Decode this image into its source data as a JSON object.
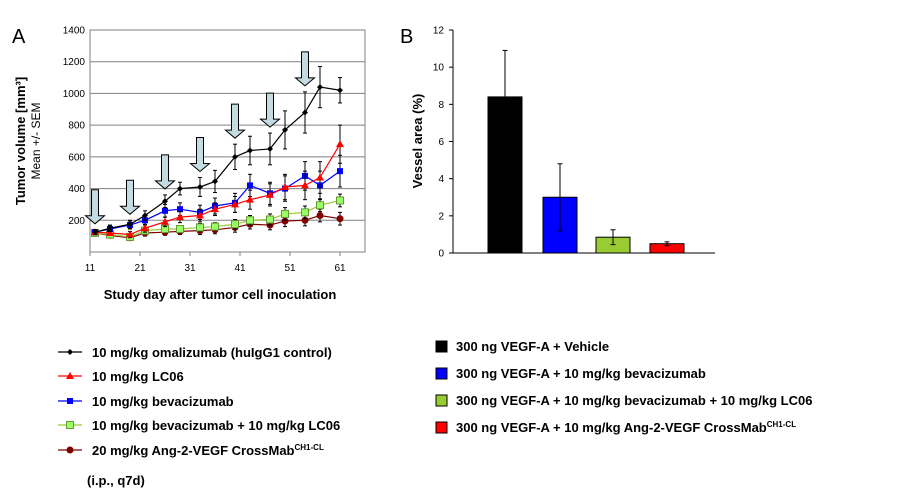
{
  "chart_data": [
    {
      "panel": "A",
      "type": "line",
      "xlabel": "Study day after tumor cell inoculation",
      "ylabel": "Tumor volume [mm³]",
      "ylabel_sub": "Mean +/- SEM",
      "xlim": [
        11,
        66
      ],
      "ylim": [
        0,
        1400
      ],
      "xticks": [
        "11",
        "21",
        "31",
        "41",
        "51",
        "61"
      ],
      "yticks": [
        "200",
        "400",
        "600",
        "800",
        "1000",
        "1200",
        "1400"
      ],
      "grid": true,
      "treatment_days": [
        12,
        19,
        26,
        33,
        40,
        47,
        54
      ],
      "series": [
        {
          "name": "10 mg/kg omalizumab (huIgG1 control)",
          "color": "#000000",
          "marker": "diamond",
          "x": [
            12,
            15,
            19,
            22,
            26,
            29,
            33,
            36,
            40,
            43,
            47,
            50,
            54,
            57,
            61
          ],
          "y": [
            125,
            150,
            175,
            230,
            320,
            400,
            410,
            445,
            600,
            640,
            650,
            770,
            880,
            1040,
            1020
          ],
          "err": [
            15,
            20,
            25,
            30,
            40,
            40,
            60,
            70,
            80,
            90,
            100,
            120,
            130,
            130,
            80
          ]
        },
        {
          "name": "10 mg/kg LC06",
          "color": "#ff0000",
          "marker": "triangle",
          "x": [
            12,
            15,
            19,
            22,
            26,
            29,
            33,
            36,
            40,
            43,
            47,
            50,
            54,
            57,
            61
          ],
          "y": [
            125,
            120,
            110,
            150,
            190,
            220,
            230,
            270,
            300,
            330,
            360,
            410,
            420,
            470,
            680
          ],
          "err": [
            15,
            15,
            20,
            25,
            30,
            35,
            40,
            40,
            50,
            60,
            70,
            80,
            90,
            100,
            120
          ]
        },
        {
          "name": "10 mg/kg bevacizumab",
          "color": "#0000ff",
          "marker": "square",
          "x": [
            12,
            15,
            19,
            22,
            26,
            29,
            33,
            36,
            40,
            43,
            47,
            50,
            54,
            57,
            61
          ],
          "y": [
            125,
            145,
            170,
            200,
            260,
            270,
            250,
            290,
            310,
            420,
            370,
            400,
            480,
            420,
            510
          ],
          "err": [
            15,
            20,
            25,
            30,
            40,
            40,
            45,
            50,
            60,
            70,
            70,
            80,
            90,
            90,
            100
          ]
        },
        {
          "name": "10 mg/kg bevacizumab + 10 mg/kg LC06",
          "color": "#99cc33",
          "marker": "square-open",
          "x": [
            12,
            15,
            19,
            22,
            26,
            29,
            33,
            36,
            40,
            43,
            47,
            50,
            54,
            57,
            61
          ],
          "y": [
            120,
            110,
            95,
            135,
            145,
            145,
            155,
            160,
            175,
            200,
            205,
            240,
            250,
            295,
            325
          ],
          "err": [
            15,
            15,
            15,
            20,
            20,
            20,
            25,
            25,
            30,
            30,
            35,
            40,
            40,
            40,
            40
          ]
        },
        {
          "name": "20 mg/kg Ang-2-VEGF CrossMab",
          "name_sup": "CH1-CL",
          "color": "#800000",
          "marker": "circle",
          "x": [
            12,
            15,
            19,
            22,
            26,
            29,
            33,
            36,
            40,
            43,
            47,
            50,
            54,
            57,
            61
          ],
          "y": [
            120,
            105,
            90,
            120,
            125,
            130,
            135,
            140,
            155,
            175,
            170,
            195,
            200,
            230,
            210
          ],
          "err": [
            15,
            15,
            15,
            20,
            20,
            20,
            25,
            25,
            30,
            30,
            30,
            35,
            35,
            40,
            40
          ]
        }
      ],
      "legend_note": "(i.p., q7d)"
    },
    {
      "panel": "B",
      "type": "bar",
      "ylabel": "Vessel area (%)",
      "ylim": [
        0,
        12
      ],
      "yticks": [
        "0",
        "2",
        "4",
        "6",
        "8",
        "10",
        "12"
      ],
      "grid": false,
      "categories": [
        "300 ng VEGF-A + Vehicle",
        "300 ng VEGF-A + 10 mg/kg bevacizumab",
        "300 ng VEGF-A + 10 mg/kg bevacizumab + 10 mg/kg LC06",
        "300 ng VEGF-A + 10 mg/kg Ang-2-VEGF CrossMab"
      ],
      "category_sup": [
        "",
        "",
        "",
        "CH1-CL"
      ],
      "values": [
        8.4,
        3.0,
        0.85,
        0.5
      ],
      "errors": [
        2.5,
        1.8,
        0.4,
        0.1
      ],
      "colors": [
        "#000000",
        "#0000ff",
        "#99cc33",
        "#ff0000"
      ]
    }
  ]
}
